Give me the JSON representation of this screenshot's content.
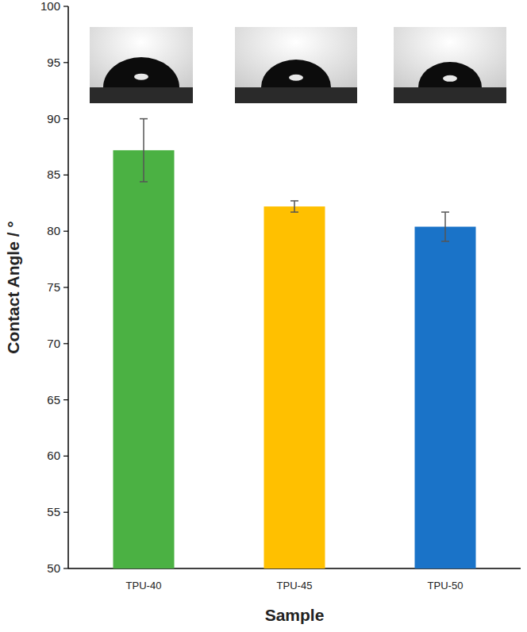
{
  "chart_data": {
    "type": "bar",
    "x_label": "Sample",
    "y_label": "Contact Angle / °",
    "categories": [
      "TPU-40",
      "TPU-45",
      "TPU-50"
    ],
    "values": [
      87.2,
      82.2,
      80.4
    ],
    "errors": [
      2.8,
      0.5,
      1.3
    ],
    "colors": [
      "#4bb143",
      "#ffc000",
      "#1a73c8"
    ],
    "ylim": [
      50,
      100
    ],
    "yticks": [
      50,
      55,
      60,
      65,
      70,
      75,
      80,
      85,
      90,
      95,
      100
    ],
    "grid": false
  }
}
